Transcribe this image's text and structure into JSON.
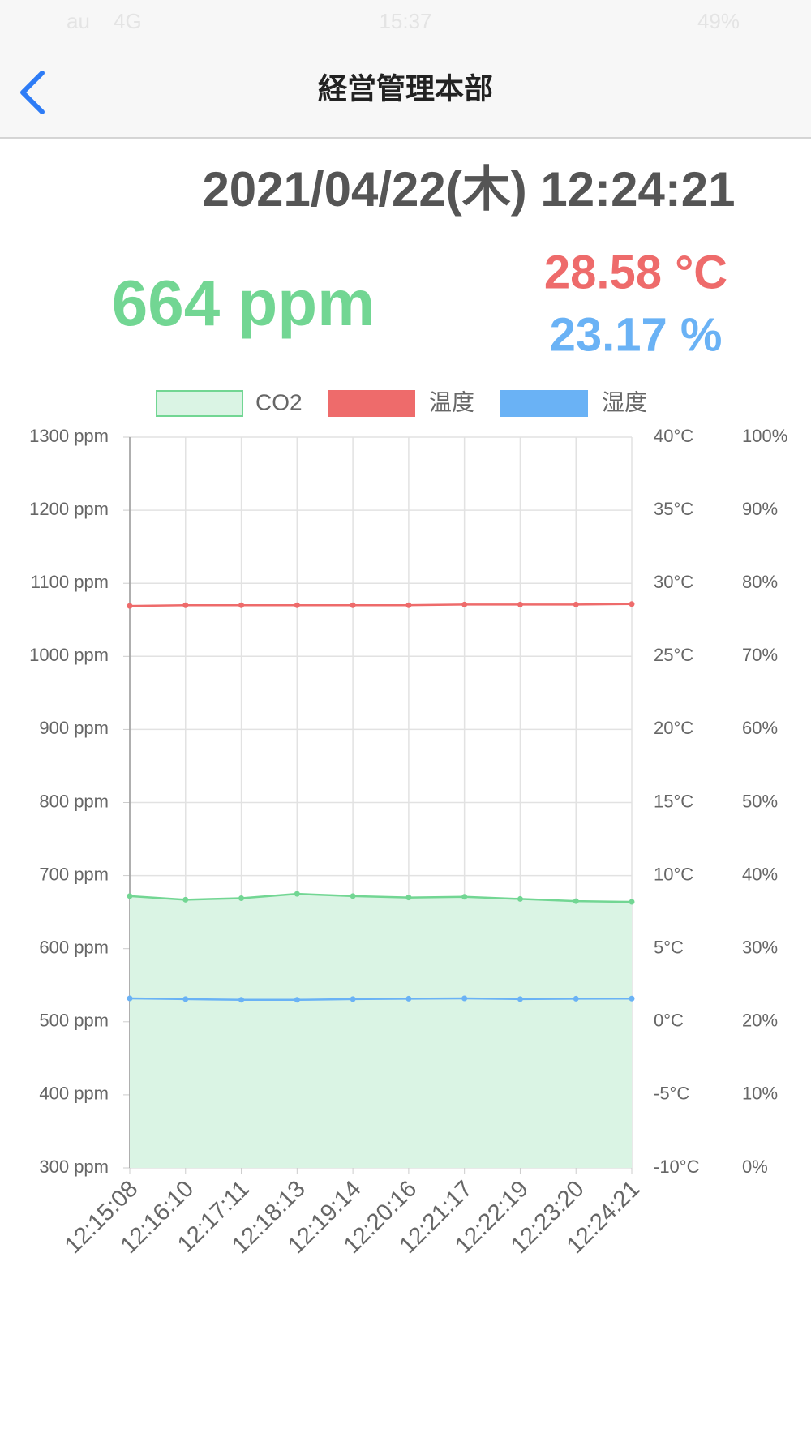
{
  "status_bar": {
    "carrier": "au",
    "network": "4G",
    "time": "15:37",
    "battery": "49%"
  },
  "nav": {
    "title": "経営管理本部"
  },
  "datetime": "2021/04/22(木) 12:24:21",
  "readings": {
    "co2": "664 ppm",
    "temperature": "28.58 °C",
    "humidity": "23.17 %"
  },
  "chart_data": {
    "type": "line",
    "categories": [
      "12:15:08",
      "12:16:10",
      "12:17:11",
      "12:18:13",
      "12:19:14",
      "12:20:16",
      "12:21:17",
      "12:22:19",
      "12:23:20",
      "12:24:21"
    ],
    "series": [
      {
        "name": "CO2",
        "color": "#72d693",
        "fill": "#daf4e4",
        "area": true,
        "axis": "y",
        "values": [
          672,
          667,
          669,
          675,
          672,
          670,
          671,
          668,
          665,
          664
        ]
      },
      {
        "name": "温度",
        "color": "#ee6b6b",
        "axis": "y2",
        "values": [
          28.45,
          28.5,
          28.5,
          28.5,
          28.5,
          28.5,
          28.55,
          28.55,
          28.55,
          28.58
        ]
      },
      {
        "name": "湿度",
        "color": "#6ab2f5",
        "axis": "y3",
        "values": [
          23.2,
          23.1,
          23.0,
          23.0,
          23.1,
          23.15,
          23.2,
          23.1,
          23.15,
          23.17
        ]
      }
    ],
    "ylim": [
      300,
      1300
    ],
    "yticks": [
      {
        "value": 300,
        "label": "300 ppm"
      },
      {
        "value": 400,
        "label": "400 ppm"
      },
      {
        "value": 500,
        "label": "500 ppm"
      },
      {
        "value": 600,
        "label": "600 ppm"
      },
      {
        "value": 700,
        "label": "700 ppm"
      },
      {
        "value": 800,
        "label": "800 ppm"
      },
      {
        "value": 900,
        "label": "900 ppm"
      },
      {
        "value": 1000,
        "label": "1000 ppm"
      },
      {
        "value": 1100,
        "label": "1100 ppm"
      },
      {
        "value": 1200,
        "label": "1200 ppm"
      },
      {
        "value": 1300,
        "label": "1300 ppm"
      }
    ],
    "y2lim": [
      -10,
      40
    ],
    "y2ticks": [
      {
        "value": -10,
        "label": "-10°C"
      },
      {
        "value": -5,
        "label": "-5°C"
      },
      {
        "value": 0,
        "label": "0°C"
      },
      {
        "value": 5,
        "label": "5°C"
      },
      {
        "value": 10,
        "label": "10°C"
      },
      {
        "value": 15,
        "label": "15°C"
      },
      {
        "value": 20,
        "label": "20°C"
      },
      {
        "value": 25,
        "label": "25°C"
      },
      {
        "value": 30,
        "label": "30°C"
      },
      {
        "value": 35,
        "label": "35°C"
      },
      {
        "value": 40,
        "label": "40°C"
      }
    ],
    "y3lim": [
      0,
      100
    ],
    "y3ticks": [
      {
        "value": 0,
        "label": "0%"
      },
      {
        "value": 10,
        "label": "10%"
      },
      {
        "value": 20,
        "label": "20%"
      },
      {
        "value": 30,
        "label": "30%"
      },
      {
        "value": 40,
        "label": "40%"
      },
      {
        "value": 50,
        "label": "50%"
      },
      {
        "value": 60,
        "label": "60%"
      },
      {
        "value": 70,
        "label": "70%"
      },
      {
        "value": 80,
        "label": "80%"
      },
      {
        "value": 90,
        "label": "90%"
      },
      {
        "value": 100,
        "label": "100%"
      }
    ],
    "grid": true,
    "legend": "top"
  }
}
